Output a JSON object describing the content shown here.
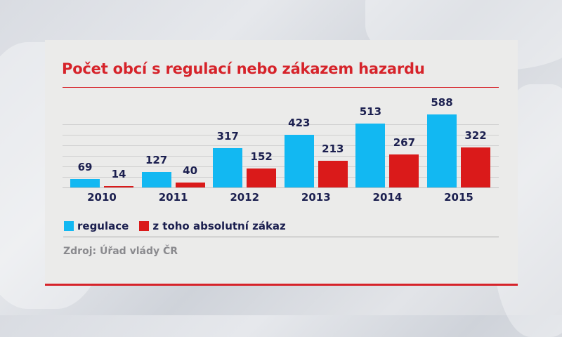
{
  "title": "Počet obcí s regulací nebo zákazem hazardu",
  "legend": [
    {
      "label": "regulace",
      "color": "#12b8f2"
    },
    {
      "label": "z toho absolutní zákaz",
      "color": "#da1a1a"
    }
  ],
  "source": "Zdroj: Úřad vlády ČR",
  "chart_data": {
    "type": "bar",
    "title": "Počet obcí s regulací nebo zákazem hazardu",
    "xlabel": "",
    "ylabel": "",
    "categories": [
      "2010",
      "2011",
      "2012",
      "2013",
      "2014",
      "2015"
    ],
    "series": [
      {
        "name": "regulace",
        "color": "#12b8f2",
        "values": [
          69,
          127,
          317,
          423,
          513,
          588
        ]
      },
      {
        "name": "z toho absolutní zákaz",
        "color": "#da1a1a",
        "values": [
          14,
          40,
          152,
          213,
          267,
          322
        ]
      }
    ],
    "ylim": [
      0,
      600
    ],
    "grid": true,
    "legend_position": "bottom-left",
    "source": "Zdroj: Úřad vlády ČR"
  }
}
